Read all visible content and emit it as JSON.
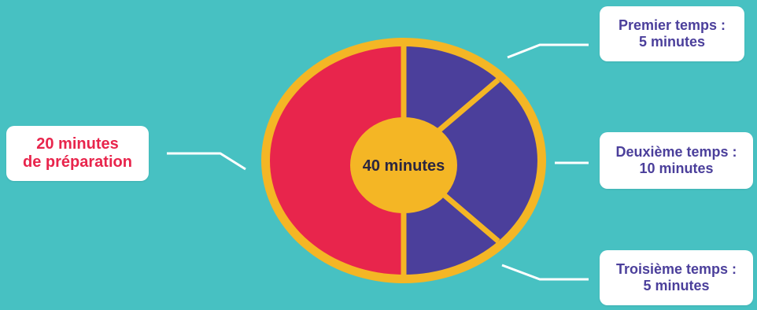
{
  "diagram": {
    "center_label": "40 minutes",
    "segments": [
      {
        "line1": "20 minutes",
        "line2": "de préparation",
        "minutes": 20,
        "color": "#e8254c"
      },
      {
        "line1": "Premier temps :",
        "line2": "5 minutes",
        "minutes": 5,
        "color": "#4b3f9b"
      },
      {
        "line1": "Deuxième temps :",
        "line2": "10 minutes",
        "minutes": 10,
        "color": "#4b3f9b"
      },
      {
        "line1": "Troisième temps :",
        "line2": "5 minutes",
        "minutes": 5,
        "color": "#4b3f9b"
      }
    ],
    "colors": {
      "background": "#47c1c2",
      "ring": "#f4b625",
      "prep": "#e8254c",
      "phases": "#4b3f9b",
      "connector": "#ffffff",
      "center_text": "#2b2640"
    }
  }
}
